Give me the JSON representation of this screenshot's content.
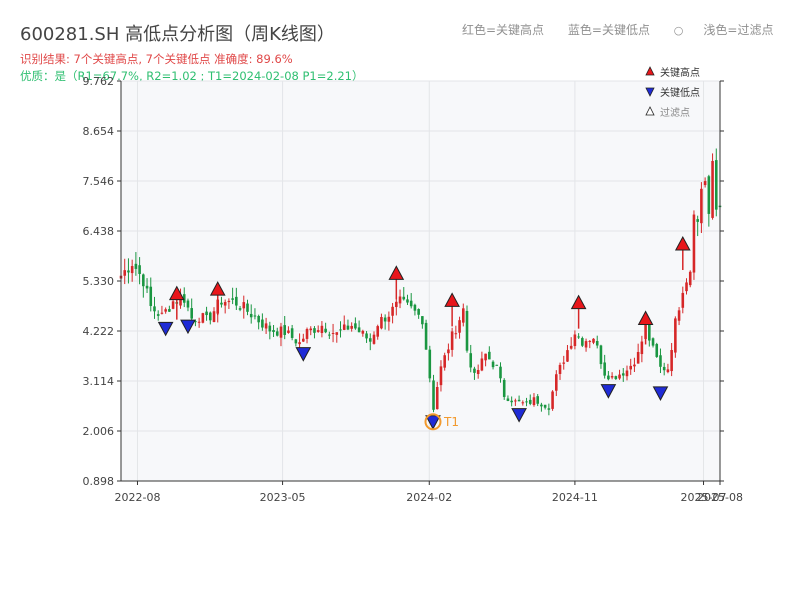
{
  "header": {
    "title": "600281.SH 高低点分析图（周K线图）",
    "result_line": "识别结果: 7个关键高点, 7个关键低点  准确度: 89.6%",
    "quality_line": "优质：是（R1=67.7%, R2=1.02 ; T1=2024-02-08 P1=2.21）"
  },
  "top_legend": {
    "red": "红色=关键高点",
    "blue": "蓝色=关键低点",
    "light": "浅色=过滤点",
    "light_glyph": "○"
  },
  "colors": {
    "up": "#d62728",
    "down": "#1a9641",
    "high_marker": "#e8161b",
    "low_marker": "#1f2bd6",
    "filtered_marker": "#ffffff",
    "t1_ring": "#f29a2e",
    "plot_bg": "#f7f8fa",
    "grid": "#e3e5e8"
  },
  "chart_data": {
    "type": "candlestick",
    "frequency": "weekly",
    "x_start": "2022-07-01",
    "x_end": "2025-08-01",
    "ylim": [
      0.898,
      9.762
    ],
    "y_ticks": [
      "0.898",
      "2.006",
      "3.114",
      "4.222",
      "5.330",
      "6.438",
      "7.546",
      "8.654",
      "9.762"
    ],
    "x_ticks": [
      {
        "date": "2022-08-01",
        "label": "2022-08"
      },
      {
        "date": "2023-05-01",
        "label": "2023-05"
      },
      {
        "date": "2024-02-01",
        "label": "2024-02"
      },
      {
        "date": "2024-11-01",
        "label": "2024-11"
      },
      {
        "date": "2025-07-01",
        "label": "2025-07"
      },
      {
        "date": "2025-08-01",
        "label": "2025-08"
      }
    ],
    "close_anchors": [
      [
        "2022-07-01",
        5.45
      ],
      [
        "2022-07-22",
        5.75
      ],
      [
        "2022-08-12",
        5.35
      ],
      [
        "2022-08-26",
        4.75
      ],
      [
        "2022-09-16",
        4.55
      ],
      [
        "2022-10-07",
        4.88
      ],
      [
        "2022-10-28",
        4.95
      ],
      [
        "2022-11-11",
        4.5
      ],
      [
        "2022-11-25",
        4.55
      ],
      [
        "2022-12-09",
        4.45
      ],
      [
        "2023-01-06",
        4.9
      ],
      [
        "2023-02-03",
        4.85
      ],
      [
        "2023-03-03",
        4.6
      ],
      [
        "2023-04-07",
        4.25
      ],
      [
        "2023-05-05",
        4.2
      ],
      [
        "2023-06-02",
        3.95
      ],
      [
        "2023-06-16",
        4.2
      ],
      [
        "2023-07-14",
        4.35
      ],
      [
        "2023-08-11",
        4.15
      ],
      [
        "2023-09-08",
        4.35
      ],
      [
        "2023-10-13",
        4.0
      ],
      [
        "2023-10-27",
        4.4
      ],
      [
        "2023-11-17",
        4.6
      ],
      [
        "2023-12-08",
        4.85
      ],
      [
        "2023-12-29",
        4.7
      ],
      [
        "2024-01-19",
        4.5
      ],
      [
        "2024-02-02",
        3.2
      ],
      [
        "2024-02-08",
        2.45
      ],
      [
        "2024-02-16",
        3.0
      ],
      [
        "2024-02-23",
        3.4
      ],
      [
        "2024-03-15",
        4.1
      ],
      [
        "2024-04-05",
        4.7
      ],
      [
        "2024-04-12",
        3.8
      ],
      [
        "2024-04-26",
        3.2
      ],
      [
        "2024-05-17",
        3.7
      ],
      [
        "2024-06-07",
        3.4
      ],
      [
        "2024-06-21",
        2.8
      ],
      [
        "2024-07-12",
        2.65
      ],
      [
        "2024-08-02",
        2.6
      ],
      [
        "2024-08-16",
        2.7
      ],
      [
        "2024-09-13",
        2.55
      ],
      [
        "2024-09-27",
        3.2
      ],
      [
        "2024-10-18",
        3.8
      ],
      [
        "2024-11-01",
        4.2
      ],
      [
        "2024-11-15",
        4.0
      ],
      [
        "2024-12-06",
        4.1
      ],
      [
        "2024-12-27",
        3.3
      ],
      [
        "2025-01-10",
        3.2
      ],
      [
        "2025-02-07",
        3.35
      ],
      [
        "2025-02-28",
        3.7
      ],
      [
        "2025-03-14",
        4.3
      ],
      [
        "2025-03-28",
        3.8
      ],
      [
        "2025-04-11",
        3.4
      ],
      [
        "2025-04-25",
        3.4
      ],
      [
        "2025-05-09",
        4.4
      ],
      [
        "2025-05-23",
        5.2
      ],
      [
        "2025-06-06",
        5.6
      ],
      [
        "2025-06-13",
        7.0
      ],
      [
        "2025-06-20",
        6.6
      ],
      [
        "2025-06-27",
        7.4
      ],
      [
        "2025-07-04",
        7.6
      ],
      [
        "2025-07-11",
        6.8
      ],
      [
        "2025-07-18",
        7.8
      ],
      [
        "2025-07-25",
        6.9
      ],
      [
        "2025-08-01",
        7.0
      ]
    ],
    "key_highs": [
      {
        "date": "2022-10-14",
        "price": 5.05
      },
      {
        "date": "2022-12-30",
        "price": 5.15
      },
      {
        "date": "2023-12-01",
        "price": 5.5
      },
      {
        "date": "2024-03-15",
        "price": 4.9
      },
      {
        "date": "2024-11-08",
        "price": 4.85
      },
      {
        "date": "2025-03-14",
        "price": 4.5
      },
      {
        "date": "2025-05-23",
        "price": 6.15
      }
    ],
    "key_lows": [
      {
        "date": "2022-09-23",
        "price": 4.28
      },
      {
        "date": "2022-11-04",
        "price": 4.33
      },
      {
        "date": "2023-06-09",
        "price": 3.72
      },
      {
        "date": "2024-02-08",
        "price": 2.21
      },
      {
        "date": "2024-07-19",
        "price": 2.37
      },
      {
        "date": "2025-01-03",
        "price": 2.9
      },
      {
        "date": "2025-04-11",
        "price": 2.85
      }
    ],
    "t1": {
      "date": "2024-02-08",
      "price": 2.21,
      "label": "T1"
    },
    "legend": [
      {
        "marker": "high",
        "label": "关键高点"
      },
      {
        "marker": "low",
        "label": "关键低点"
      },
      {
        "marker": "filtered",
        "label": "过滤点"
      }
    ]
  }
}
